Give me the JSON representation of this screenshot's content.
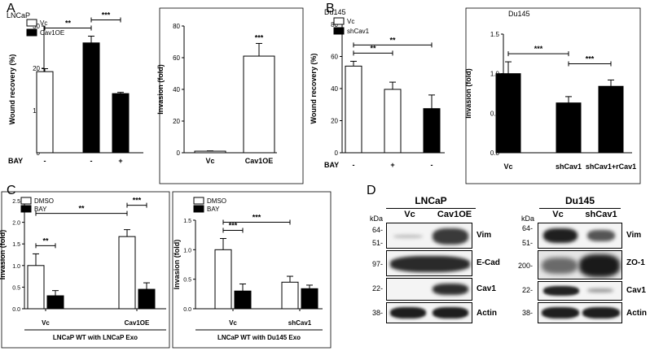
{
  "panels": {
    "A": "A",
    "B": "B",
    "C": "C",
    "D": "D"
  },
  "chart_data": [
    {
      "id": "A1",
      "type": "bar",
      "panel": "A",
      "title": "",
      "ylabel": "Wound recovery (%)",
      "ylim": [
        0,
        30
      ],
      "yticks": [
        "0",
        "10",
        "20",
        "30"
      ],
      "cell_label": "LNCaP",
      "legend": [
        "Vc",
        "Cav1OE"
      ],
      "legend_fills": [
        "white",
        "black"
      ],
      "treatment_label": "BAY",
      "categories": [
        "-",
        "-",
        "+"
      ],
      "values": [
        19.2,
        26.0,
        14.0
      ],
      "errors": [
        0.7,
        1.6,
        0.3
      ],
      "fills": [
        "white",
        "black",
        "black"
      ],
      "sig": [
        {
          "from": 0,
          "to": 1,
          "label": "**"
        },
        {
          "from": 1,
          "to": 2,
          "label": "***"
        }
      ]
    },
    {
      "id": "A2",
      "type": "bar",
      "panel": "A",
      "title": "",
      "ylabel": "Invasion (fold)",
      "ylim": [
        0,
        80
      ],
      "yticks": [
        "0",
        "20",
        "40",
        "60",
        "80"
      ],
      "categories": [
        "Vc",
        "Cav1OE"
      ],
      "values": [
        1.0,
        61.0
      ],
      "errors": [
        0.2,
        8.0
      ],
      "fills": [
        "white",
        "white"
      ],
      "bar_labels": [
        "",
        "***"
      ]
    },
    {
      "id": "B1",
      "type": "bar",
      "panel": "B",
      "title": "",
      "ylabel": "Wound recovery (%)",
      "ylim": [
        0,
        80
      ],
      "yticks": [
        "0",
        "20",
        "40",
        "60",
        "80"
      ],
      "cell_label": "Du145",
      "legend": [
        "Vc",
        "shCav1"
      ],
      "legend_fills": [
        "white",
        "black"
      ],
      "treatment_label": "BAY",
      "categories": [
        "-",
        "+",
        "-"
      ],
      "values": [
        54.0,
        39.5,
        27.5
      ],
      "errors": [
        3.0,
        4.5,
        8.5
      ],
      "fills": [
        "white",
        "white",
        "black"
      ],
      "sig": [
        {
          "from": 0,
          "to": 1,
          "label": "**"
        },
        {
          "from": 0,
          "to": 2,
          "label": "**"
        }
      ]
    },
    {
      "id": "B2",
      "type": "bar",
      "panel": "B",
      "title": "",
      "ylabel": "Invasion (fold)",
      "ylim": [
        0,
        1.5
      ],
      "yticks": [
        "0.0",
        "0.5",
        "1.0",
        "1.5"
      ],
      "cell_label": "Du145",
      "categories": [
        "Vc",
        "shCav1",
        "shCav1+rCav1"
      ],
      "values": [
        1.0,
        0.63,
        0.84
      ],
      "errors": [
        0.15,
        0.08,
        0.08
      ],
      "fills": [
        "black",
        "black",
        "black"
      ],
      "sig": [
        {
          "from": 0,
          "to": 1,
          "label": "***"
        },
        {
          "from": 1,
          "to": 2,
          "label": "***"
        }
      ]
    },
    {
      "id": "C1",
      "type": "bar",
      "panel": "C",
      "title": "",
      "ylabel": "Invasion (fold)",
      "ylim": [
        0,
        2.5
      ],
      "yticks": [
        "0.0",
        "0.5",
        "1.0",
        "1.5",
        "2.0",
        "2.5"
      ],
      "legend": [
        "DMSO",
        "BAY"
      ],
      "legend_fills": [
        "white",
        "black"
      ],
      "groups": [
        "Vc",
        "Cav1OE"
      ],
      "xlabel": "LNCaP WT with LNCaP Exo",
      "series": [
        {
          "name": "DMSO",
          "values": [
            1.0,
            1.67
          ],
          "errors": [
            0.27,
            0.16
          ],
          "fill": "white"
        },
        {
          "name": "BAY",
          "values": [
            0.3,
            0.45
          ],
          "errors": [
            0.12,
            0.15
          ],
          "fill": "black"
        }
      ],
      "sig": [
        {
          "from": 0,
          "to": 1,
          "label": "**"
        },
        {
          "from": 0,
          "to": 2,
          "label": "**"
        },
        {
          "from": 2,
          "to": 3,
          "label": "***"
        }
      ]
    },
    {
      "id": "C2",
      "type": "bar",
      "panel": "C",
      "title": "",
      "ylabel": "Invasion (fold)",
      "ylim": [
        0,
        1.5
      ],
      "yticks": [
        "0.0",
        "0.5",
        "1.0",
        "1.5"
      ],
      "legend": [
        "DMSO",
        "BAY"
      ],
      "legend_fills": [
        "white",
        "black"
      ],
      "groups": [
        "Vc",
        "shCav1"
      ],
      "xlabel": "LNCaP WT with Du145 Exo",
      "series": [
        {
          "name": "DMSO",
          "values": [
            1.0,
            0.45
          ],
          "errors": [
            0.19,
            0.1
          ],
          "fill": "white"
        },
        {
          "name": "BAY",
          "values": [
            0.3,
            0.34
          ],
          "errors": [
            0.12,
            0.06
          ],
          "fill": "black"
        }
      ],
      "sig": [
        {
          "from": 0,
          "to": 1,
          "label": "***"
        },
        {
          "from": 0,
          "to": 2,
          "label": "***"
        }
      ]
    }
  ],
  "blots": {
    "lncap": {
      "title": "LNCaP",
      "kda_label": "kDa",
      "lanes": [
        "Vc",
        "Cav1OE"
      ],
      "rows": [
        {
          "label": "Vim",
          "markers": [
            "64-",
            "51-"
          ]
        },
        {
          "label": "E-Cad",
          "markers": [
            "97-"
          ]
        },
        {
          "label": "Cav1",
          "markers": [
            "22-"
          ]
        },
        {
          "label": "Actin",
          "markers": [
            "38-"
          ]
        }
      ]
    },
    "du145": {
      "title": "Du145",
      "kda_label": "kDa",
      "lanes": [
        "Vc",
        "shCav1"
      ],
      "rows": [
        {
          "label": "Vim",
          "markers": [
            "64-",
            "51-"
          ]
        },
        {
          "label": "ZO-1",
          "markers": [
            "200-"
          ]
        },
        {
          "label": "Cav1",
          "markers": [
            "22-"
          ]
        },
        {
          "label": "Actin",
          "markers": [
            "38-"
          ]
        }
      ]
    }
  }
}
